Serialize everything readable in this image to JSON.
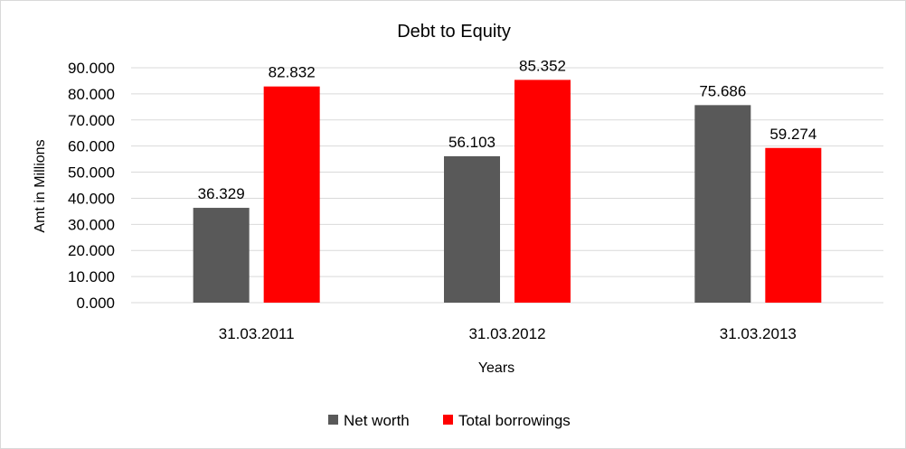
{
  "chart_data": {
    "type": "bar",
    "title": "Debt to Equity",
    "xlabel": "Years",
    "ylabel": "Amt in Millions",
    "categories": [
      "31.03.2011",
      "31.03.2012",
      "31.03.2013"
    ],
    "series": [
      {
        "name": "Net worth",
        "values": [
          36.329,
          56.103,
          75.686
        ],
        "color": "#595959"
      },
      {
        "name": "Total borrowings",
        "values": [
          82.832,
          85.352,
          59.274
        ],
        "color": "#ff0000"
      }
    ],
    "ylim": [
      0,
      90
    ],
    "yticks": [
      0,
      10,
      20,
      30,
      40,
      50,
      60,
      70,
      80,
      90
    ],
    "ytick_labels": [
      "0.000",
      "10.000",
      "20.000",
      "30.000",
      "40.000",
      "50.000",
      "60.000",
      "70.000",
      "80.000",
      "90.000"
    ],
    "data_labels": [
      [
        "36.329",
        "56.103",
        "75.686"
      ],
      [
        "82.832",
        "85.352",
        "59.274"
      ]
    ],
    "grid": true,
    "gridline_color": "#d9d9d9",
    "legend_position": "bottom"
  }
}
